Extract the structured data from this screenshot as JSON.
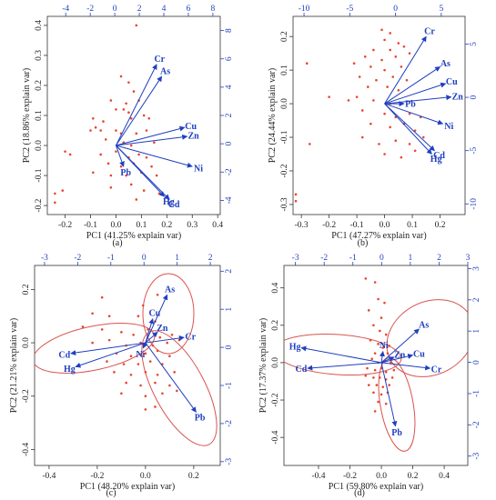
{
  "chart_data": [
    {
      "type": "scatter",
      "panel_label": "(a)",
      "xlabel": "PC1 (41.25% explain var)",
      "ylabel": "PC2 (18.86% explain var)",
      "xlim": [
        -0.27,
        0.41
      ],
      "ylim": [
        -0.23,
        0.43
      ],
      "x_ticks": [
        "-0.2",
        "-0.1",
        "0.0",
        "0.1",
        "0.2",
        "0.3",
        "0.4"
      ],
      "x_tick_values": [
        -0.2,
        -0.1,
        0.0,
        0.1,
        0.2,
        0.3,
        0.4
      ],
      "y_ticks": [
        "-0.2",
        "-0.1",
        "0.0",
        "0.1",
        "0.2",
        "0.3",
        "0.4"
      ],
      "y_tick_values": [
        -0.2,
        -0.1,
        0.0,
        0.1,
        0.2,
        0.3,
        0.4
      ],
      "top_ticks": [
        "-4",
        "-2",
        "0",
        "2",
        "4",
        "6",
        "8"
      ],
      "top_tick_values": [
        -4,
        -2,
        0,
        2,
        4,
        6,
        8
      ],
      "top_lim": [
        -5.5,
        8.6
      ],
      "right_ticks": [
        "-4",
        "-2",
        "0",
        "2",
        "4",
        "6",
        "8"
      ],
      "right_tick_values": [
        -4,
        -2,
        0,
        2,
        4,
        6,
        8
      ],
      "right_lim": [
        -5.0,
        9.0
      ],
      "grid": false,
      "loadings": [
        {
          "name": "Cr",
          "x": 0.16,
          "y": 0.27
        },
        {
          "name": "As",
          "x": 0.18,
          "y": 0.23
        },
        {
          "name": "Cu",
          "x": 0.27,
          "y": 0.06
        },
        {
          "name": "Zn",
          "x": 0.28,
          "y": 0.03
        },
        {
          "name": "Ni",
          "x": 0.3,
          "y": -0.07
        },
        {
          "name": "Cd",
          "x": 0.21,
          "y": -0.18
        },
        {
          "name": "Hg",
          "x": 0.19,
          "y": -0.17
        },
        {
          "name": "Pb",
          "x": 0.03,
          "y": -0.07
        }
      ],
      "points": [
        [
          0.08,
          0.4
        ],
        [
          0.02,
          0.23
        ],
        [
          0.05,
          0.21
        ],
        [
          0.07,
          0.18
        ],
        [
          -0.02,
          0.15
        ],
        [
          0.04,
          0.14
        ],
        [
          0.09,
          0.15
        ],
        [
          0.0,
          0.12
        ],
        [
          0.03,
          0.12
        ],
        [
          0.05,
          0.11
        ],
        [
          -0.09,
          0.09
        ],
        [
          -0.05,
          0.08
        ],
        [
          0.06,
          0.09
        ],
        [
          0.11,
          0.1
        ],
        [
          0.13,
          0.09
        ],
        [
          -0.08,
          0.06
        ],
        [
          -0.06,
          0.05
        ],
        [
          -0.1,
          0.05
        ],
        [
          0.0,
          0.05
        ],
        [
          0.02,
          0.04
        ],
        [
          0.08,
          0.04
        ],
        [
          0.12,
          0.05
        ],
        [
          -0.04,
          0.02
        ],
        [
          0.03,
          0.01
        ],
        [
          0.06,
          0.0
        ],
        [
          0.15,
          0.01
        ],
        [
          -0.2,
          -0.02
        ],
        [
          -0.18,
          -0.03
        ],
        [
          -0.06,
          -0.03
        ],
        [
          0.0,
          -0.02
        ],
        [
          0.05,
          -0.04
        ],
        [
          0.09,
          -0.03
        ],
        [
          0.12,
          -0.04
        ],
        [
          -0.03,
          -0.06
        ],
        [
          0.02,
          -0.07
        ],
        [
          0.07,
          -0.06
        ],
        [
          0.14,
          -0.07
        ],
        [
          -0.09,
          -0.09
        ],
        [
          -0.02,
          -0.1
        ],
        [
          0.04,
          -0.1
        ],
        [
          0.1,
          -0.09
        ],
        [
          0.16,
          -0.1
        ],
        [
          -0.24,
          -0.16
        ],
        [
          -0.21,
          -0.15
        ],
        [
          -0.02,
          -0.14
        ],
        [
          0.06,
          -0.13
        ],
        [
          0.11,
          -0.15
        ],
        [
          0.17,
          -0.16
        ],
        [
          -0.24,
          -0.19
        ],
        [
          0.08,
          -0.18
        ]
      ]
    },
    {
      "type": "scatter",
      "panel_label": "(b)",
      "xlabel": "PC1 (47.27% explain var)",
      "ylabel": "PC2 (24.44% explain var)",
      "xlim": [
        -0.33,
        0.29
      ],
      "ylim": [
        -0.33,
        0.26
      ],
      "x_ticks": [
        "-0.3",
        "-0.2",
        "-0.1",
        "0.0",
        "0.1",
        "0.2"
      ],
      "x_tick_values": [
        -0.3,
        -0.2,
        -0.1,
        0.0,
        0.1,
        0.2
      ],
      "y_ticks": [
        "-0.3",
        "-0.2",
        "-0.1",
        "0.0",
        "0.1",
        "0.2"
      ],
      "y_tick_values": [
        -0.3,
        -0.2,
        -0.1,
        0.0,
        0.1,
        0.2
      ],
      "top_ticks": [
        "-10",
        "-5",
        "0",
        "5"
      ],
      "top_tick_values": [
        -10,
        -5,
        0,
        5
      ],
      "top_lim": [
        -11.2,
        7.6
      ],
      "right_ticks": [
        "-10",
        "-5",
        "0",
        "5"
      ],
      "right_tick_values": [
        -10,
        -5,
        0,
        5
      ],
      "right_lim": [
        -11.0,
        7.6
      ],
      "grid": false,
      "loadings": [
        {
          "name": "Cr",
          "x": 0.15,
          "y": 0.2
        },
        {
          "name": "As",
          "x": 0.2,
          "y": 0.11
        },
        {
          "name": "Cu",
          "x": 0.22,
          "y": 0.06
        },
        {
          "name": "Zn",
          "x": 0.24,
          "y": 0.02
        },
        {
          "name": "Pb",
          "x": 0.07,
          "y": 0.0
        },
        {
          "name": "Ni",
          "x": 0.21,
          "y": -0.06
        },
        {
          "name": "Cd",
          "x": 0.18,
          "y": -0.14
        },
        {
          "name": "Hg",
          "x": 0.17,
          "y": -0.15
        }
      ],
      "points": [
        [
          -0.01,
          0.22
        ],
        [
          0.02,
          0.21
        ],
        [
          0.0,
          0.19
        ],
        [
          0.05,
          0.18
        ],
        [
          -0.04,
          0.16
        ],
        [
          0.02,
          0.16
        ],
        [
          0.07,
          0.17
        ],
        [
          -0.07,
          0.14
        ],
        [
          -0.01,
          0.13
        ],
        [
          0.04,
          0.14
        ],
        [
          0.09,
          0.15
        ],
        [
          -0.28,
          0.12
        ],
        [
          -0.11,
          0.12
        ],
        [
          -0.05,
          0.11
        ],
        [
          0.0,
          0.1
        ],
        [
          0.06,
          0.11
        ],
        [
          -0.09,
          0.08
        ],
        [
          -0.03,
          0.07
        ],
        [
          0.03,
          0.08
        ],
        [
          0.08,
          0.07
        ],
        [
          -0.06,
          0.05
        ],
        [
          0.01,
          0.05
        ],
        [
          0.05,
          0.04
        ],
        [
          -0.2,
          0.02
        ],
        [
          -0.13,
          0.01
        ],
        [
          -0.1,
          0.02
        ],
        [
          -0.04,
          0.01
        ],
        [
          0.02,
          0.0
        ],
        [
          -0.08,
          -0.02
        ],
        [
          0.0,
          -0.03
        ],
        [
          0.04,
          -0.04
        ],
        [
          0.09,
          -0.03
        ],
        [
          0.13,
          -0.04
        ],
        [
          -0.05,
          -0.06
        ],
        [
          0.02,
          -0.07
        ],
        [
          0.07,
          -0.06
        ],
        [
          0.11,
          -0.08
        ],
        [
          -0.27,
          -0.12
        ],
        [
          -0.08,
          -0.1
        ],
        [
          -0.02,
          -0.12
        ],
        [
          0.04,
          -0.11
        ],
        [
          0.09,
          -0.12
        ],
        [
          0.14,
          -0.1
        ],
        [
          0.0,
          -0.15
        ],
        [
          0.06,
          -0.16
        ],
        [
          0.11,
          -0.14
        ],
        [
          -0.32,
          -0.27
        ],
        [
          -0.32,
          -0.29
        ]
      ]
    },
    {
      "type": "scatter",
      "panel_label": "(c)",
      "xlabel": "PC1 (48.20% explain var)",
      "ylabel": "PC2 (21.21% explain var)",
      "xlim": [
        -0.46,
        0.31
      ],
      "ylim": [
        -0.46,
        0.29
      ],
      "x_ticks": [
        "-0.4",
        "-0.2",
        "0.0",
        "0.2"
      ],
      "x_tick_values": [
        -0.4,
        -0.2,
        0.0,
        0.2
      ],
      "y_ticks": [
        "-0.4",
        "-0.2",
        "0.0",
        "0.2"
      ],
      "y_tick_values": [
        -0.4,
        -0.2,
        0.0,
        0.2
      ],
      "top_ticks": [
        "-3",
        "-2",
        "-1",
        "0",
        "1",
        "2"
      ],
      "top_tick_values": [
        -3,
        -2,
        -1,
        0,
        1,
        2
      ],
      "top_lim": [
        -3.3,
        2.3
      ],
      "right_ticks": [
        "-3",
        "-2",
        "-1",
        "0",
        "1",
        "2"
      ],
      "right_tick_values": [
        -3,
        -2,
        -1,
        0,
        1,
        2
      ],
      "right_lim": [
        -3.1,
        2.15
      ],
      "grid": false,
      "loadings": [
        {
          "name": "As",
          "x": 0.09,
          "y": 0.18
        },
        {
          "name": "Cu",
          "x": 0.03,
          "y": 0.09
        },
        {
          "name": "Zn",
          "x": 0.05,
          "y": 0.04
        },
        {
          "name": "Cr",
          "x": 0.16,
          "y": 0.02
        },
        {
          "name": "Ni",
          "x": -0.01,
          "y": -0.02
        },
        {
          "name": "Cd",
          "x": -0.31,
          "y": -0.04
        },
        {
          "name": "Hg",
          "x": -0.29,
          "y": -0.09
        },
        {
          "name": "Pb",
          "x": 0.21,
          "y": -0.26
        }
      ],
      "points": [
        [
          -0.18,
          0.17
        ],
        [
          -0.01,
          0.14
        ],
        [
          0.05,
          0.18
        ],
        [
          -0.22,
          0.11
        ],
        [
          -0.15,
          0.1
        ],
        [
          -0.03,
          0.1
        ],
        [
          0.04,
          0.08
        ],
        [
          -0.26,
          0.06
        ],
        [
          -0.18,
          0.05
        ],
        [
          -0.1,
          0.04
        ],
        [
          -0.05,
          0.03
        ],
        [
          0.01,
          0.05
        ],
        [
          0.06,
          0.02
        ],
        [
          0.11,
          0.03
        ],
        [
          -0.22,
          0.0
        ],
        [
          -0.15,
          0.01
        ],
        [
          -0.08,
          -0.01
        ],
        [
          -0.02,
          0.0
        ],
        [
          0.03,
          -0.01
        ],
        [
          0.09,
          0.0
        ],
        [
          0.14,
          0.01
        ],
        [
          -0.12,
          -0.04
        ],
        [
          -0.06,
          -0.05
        ],
        [
          0.0,
          -0.04
        ],
        [
          0.05,
          -0.03
        ],
        [
          0.1,
          -0.05
        ],
        [
          -0.16,
          -0.07
        ],
        [
          -0.09,
          -0.08
        ],
        [
          -0.03,
          -0.08
        ],
        [
          0.02,
          -0.07
        ],
        [
          0.07,
          -0.08
        ],
        [
          -0.13,
          -0.11
        ],
        [
          -0.06,
          -0.12
        ],
        [
          0.0,
          -0.11
        ],
        [
          0.05,
          -0.12
        ],
        [
          0.12,
          -0.11
        ],
        [
          -0.08,
          -0.15
        ],
        [
          -0.02,
          -0.16
        ],
        [
          0.04,
          -0.15
        ],
        [
          0.1,
          -0.16
        ],
        [
          -0.1,
          -0.19
        ],
        [
          0.0,
          -0.2
        ],
        [
          0.07,
          -0.19
        ],
        [
          0.13,
          -0.18
        ],
        [
          0.0,
          -0.25
        ],
        [
          0.04,
          -0.24
        ]
      ]
    },
    {
      "type": "scatter",
      "panel_label": "(d)",
      "xlabel": "PC1 (59.80% explain var)",
      "ylabel": "PC2 (17.37% explain var)",
      "xlim": [
        -0.62,
        0.55
      ],
      "ylim": [
        -0.55,
        0.52
      ],
      "x_ticks": [
        "-0.4",
        "-0.2",
        "0.0",
        "0.2",
        "0.4"
      ],
      "x_tick_values": [
        -0.4,
        -0.2,
        0.0,
        0.2,
        0.4
      ],
      "y_ticks": [
        "-0.4",
        "-0.2",
        "0.0",
        "0.2",
        "0.4"
      ],
      "y_tick_values": [
        -0.4,
        -0.2,
        0.0,
        0.2,
        0.4
      ],
      "top_ticks": [
        "-3",
        "-2",
        "-1",
        "0",
        "1",
        "2",
        "3"
      ],
      "top_tick_values": [
        -3,
        -2,
        -1,
        0,
        1,
        2,
        3
      ],
      "top_lim": [
        -3.4,
        3.0
      ],
      "right_ticks": [
        "-3",
        "-2",
        "-1",
        "0",
        "1",
        "2",
        "3"
      ],
      "right_tick_values": [
        -3,
        -2,
        -1,
        0,
        1,
        2,
        3
      ],
      "right_lim": [
        -3.3,
        3.1
      ],
      "grid": false,
      "loadings": [
        {
          "name": "As",
          "x": 0.24,
          "y": 0.18
        },
        {
          "name": "Ni",
          "x": 0.01,
          "y": 0.06
        },
        {
          "name": "Zn",
          "x": 0.08,
          "y": 0.03
        },
        {
          "name": "Cu",
          "x": 0.2,
          "y": 0.04
        },
        {
          "name": "Cr",
          "x": 0.31,
          "y": -0.03
        },
        {
          "name": "Hg",
          "x": -0.51,
          "y": 0.08
        },
        {
          "name": "Cd",
          "x": -0.47,
          "y": -0.03
        },
        {
          "name": "Pb",
          "x": 0.09,
          "y": -0.34
        }
      ],
      "points": [
        [
          -0.1,
          0.45
        ],
        [
          -0.04,
          0.43
        ],
        [
          -0.02,
          0.34
        ],
        [
          0.02,
          0.32
        ],
        [
          -0.08,
          0.28
        ],
        [
          0.0,
          0.24
        ],
        [
          -0.05,
          0.2
        ],
        [
          -0.01,
          0.17
        ],
        [
          0.03,
          0.15
        ],
        [
          -0.07,
          0.12
        ],
        [
          -0.02,
          0.1
        ],
        [
          0.01,
          0.08
        ],
        [
          0.05,
          0.09
        ],
        [
          -0.04,
          0.05
        ],
        [
          0.0,
          0.04
        ],
        [
          0.04,
          0.05
        ],
        [
          -0.06,
          0.02
        ],
        [
          -0.02,
          0.0
        ],
        [
          0.02,
          0.01
        ],
        [
          0.06,
          0.0
        ],
        [
          -0.09,
          -0.03
        ],
        [
          -0.04,
          -0.04
        ],
        [
          0.0,
          -0.03
        ],
        [
          0.03,
          -0.05
        ],
        [
          0.08,
          -0.04
        ],
        [
          -0.1,
          -0.07
        ],
        [
          -0.05,
          -0.08
        ],
        [
          -0.01,
          -0.08
        ],
        [
          0.03,
          -0.09
        ],
        [
          0.07,
          -0.08
        ],
        [
          -0.08,
          -0.12
        ],
        [
          -0.03,
          -0.12
        ],
        [
          0.01,
          -0.13
        ],
        [
          0.05,
          -0.12
        ],
        [
          -0.05,
          -0.16
        ],
        [
          0.0,
          -0.17
        ],
        [
          0.04,
          -0.16
        ],
        [
          -0.02,
          -0.21
        ],
        [
          0.03,
          -0.22
        ],
        [
          -0.04,
          -0.26
        ]
      ]
    }
  ],
  "colors": {
    "points": "#e8452c",
    "arrows": "#1f3fbf",
    "ellipses": "#d9534f",
    "axis": "#333333",
    "secondary_axis": "#1f3fbf"
  }
}
